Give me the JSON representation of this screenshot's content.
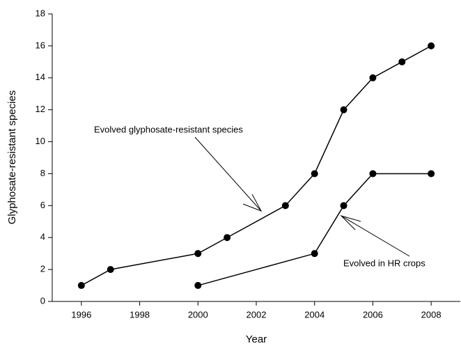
{
  "chart_data": {
    "type": "line",
    "xlabel": "Year",
    "ylabel": "Glyphosate-resistant species",
    "xlim": [
      1995,
      2009
    ],
    "xticks": [
      1996,
      1998,
      2000,
      2002,
      2004,
      2006,
      2008
    ],
    "ylim": [
      0,
      18
    ],
    "yticks": [
      0,
      2,
      4,
      6,
      8,
      10,
      12,
      14,
      16,
      18
    ],
    "grid": false,
    "series": [
      {
        "color": "#000000",
        "x": [
          1996,
          1997,
          2000,
          2001,
          2003,
          2004,
          2005,
          2006,
          2007,
          2008
        ],
        "values": [
          1,
          2,
          3,
          4,
          6,
          8,
          12,
          14,
          15,
          16
        ]
      },
      {
        "color": "#000000",
        "x": [
          2000,
          2004,
          2005,
          2006,
          2008
        ],
        "values": [
          1,
          3,
          6,
          8,
          8
        ]
      }
    ],
    "annotations": [
      "Evolved glyphosate-resistant species",
      "Evolved in HR crops"
    ]
  }
}
